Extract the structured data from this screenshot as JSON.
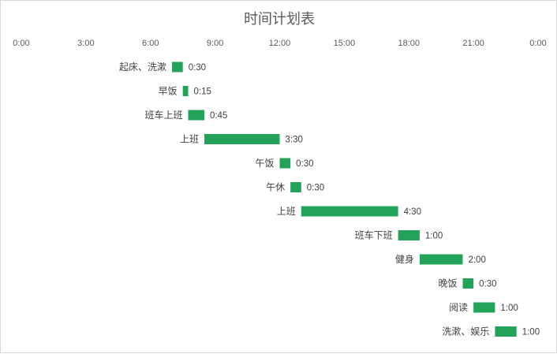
{
  "chart_data": {
    "type": "bar",
    "orientation": "horizontal",
    "stacked_offset": true,
    "title": "时间计划表",
    "x_axis": {
      "position": "top",
      "range_hours": [
        0,
        24
      ],
      "tick_labels": [
        "0:00",
        "3:00",
        "6:00",
        "9:00",
        "12:00",
        "15:00",
        "18:00",
        "21:00",
        "0:00"
      ]
    },
    "bar_color": "#23a35a",
    "tasks": [
      {
        "label": "起床、洗漱",
        "start": "7:00",
        "duration": "0:30",
        "start_hours": 7.0,
        "duration_hours": 0.5
      },
      {
        "label": "早饭",
        "start": "7:30",
        "duration": "0:15",
        "start_hours": 7.5,
        "duration_hours": 0.25
      },
      {
        "label": "班车上班",
        "start": "7:45",
        "duration": "0:45",
        "start_hours": 7.75,
        "duration_hours": 0.75
      },
      {
        "label": "上班",
        "start": "8:30",
        "duration": "3:30",
        "start_hours": 8.5,
        "duration_hours": 3.5
      },
      {
        "label": "午饭",
        "start": "12:00",
        "duration": "0:30",
        "start_hours": 12.0,
        "duration_hours": 0.5
      },
      {
        "label": "午休",
        "start": "12:30",
        "duration": "0:30",
        "start_hours": 12.5,
        "duration_hours": 0.5
      },
      {
        "label": "上班",
        "start": "13:00",
        "duration": "4:30",
        "start_hours": 13.0,
        "duration_hours": 4.5
      },
      {
        "label": "班车下班",
        "start": "17:30",
        "duration": "1:00",
        "start_hours": 17.5,
        "duration_hours": 1.0
      },
      {
        "label": "健身",
        "start": "18:30",
        "duration": "2:00",
        "start_hours": 18.5,
        "duration_hours": 2.0
      },
      {
        "label": "晚饭",
        "start": "20:30",
        "duration": "0:30",
        "start_hours": 20.5,
        "duration_hours": 0.5
      },
      {
        "label": "阅读",
        "start": "21:00",
        "duration": "1:00",
        "start_hours": 21.0,
        "duration_hours": 1.0
      },
      {
        "label": "洗漱、娱乐",
        "start": "22:00",
        "duration": "1:00",
        "start_hours": 22.0,
        "duration_hours": 1.0
      }
    ],
    "grid": false,
    "legend": "none"
  }
}
